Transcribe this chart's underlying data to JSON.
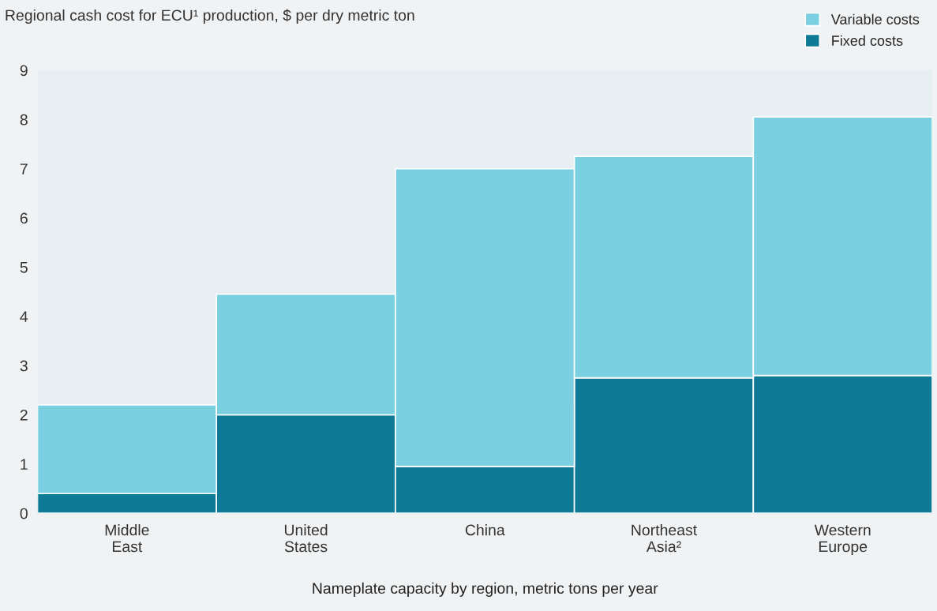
{
  "chart_data": {
    "type": "bar",
    "title": "Regional cash cost for ECU¹ production, $ per dry metric ton",
    "xlabel": "Nameplate capacity by region, metric tons per year",
    "categories": [
      "Middle\nEast",
      "United\nStates",
      "China",
      "Northeast\nAsia²",
      "Western\nEurope"
    ],
    "stacked": true,
    "series": [
      {
        "name": "Fixed costs",
        "color": "#0e7a96",
        "values": [
          0.4,
          2.0,
          0.95,
          2.75,
          2.8
        ]
      },
      {
        "name": "Variable costs",
        "color": "#7acfe0",
        "values": [
          1.8,
          2.45,
          6.05,
          4.5,
          5.25
        ]
      }
    ],
    "ylim": [
      0,
      9
    ],
    "yticks": [
      0,
      1,
      2,
      3,
      4,
      5,
      6,
      7,
      8,
      9
    ],
    "grid": false,
    "legend": "top right"
  }
}
